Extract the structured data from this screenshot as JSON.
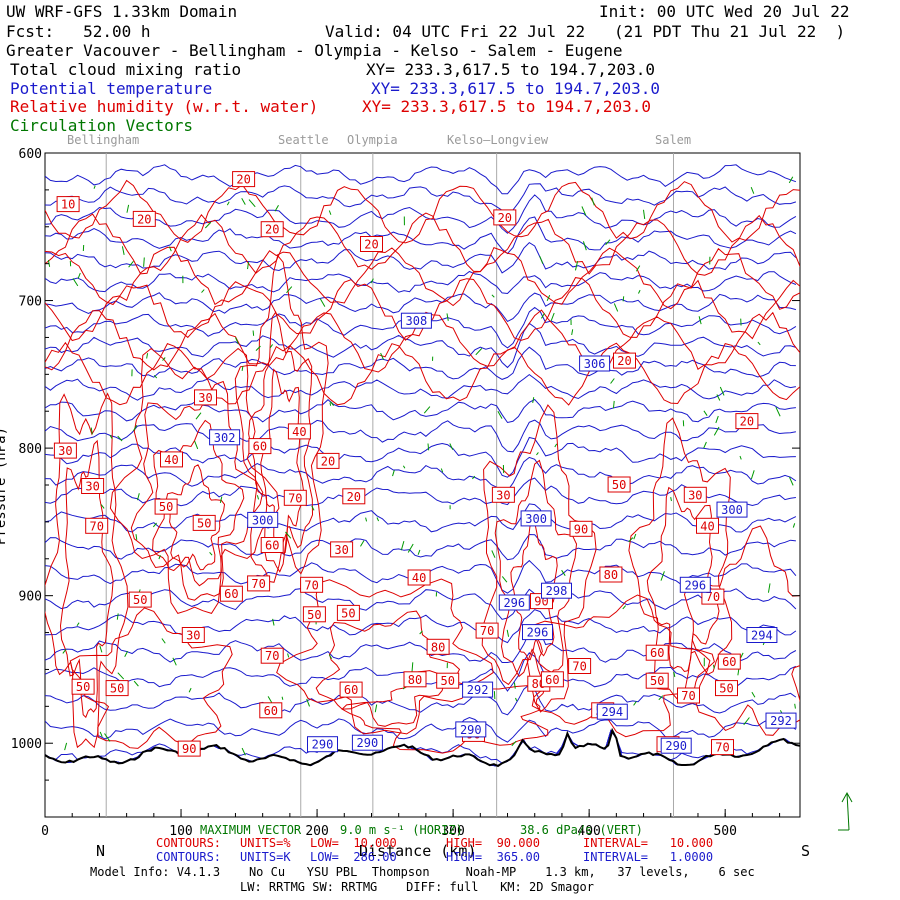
{
  "header": {
    "title": "UW WRF-GFS 1.33km Domain",
    "init": "Init: 00 UTC Wed 20 Jul 22",
    "fcst": "Fcst:   52.00 h",
    "valid": "Valid: 04 UTC Fri 22 Jul 22   (21 PDT Thu 21 Jul 22  )",
    "region": "Greater Vacouver - Bellingham - Olympia - Kelso - Salem - Eugene",
    "fields": [
      {
        "name": "Total cloud mixing ratio",
        "xy": "XY= 233.3,617.5 to 194.7,203.0",
        "color": "#000000"
      },
      {
        "name": "Potential temperature",
        "xy": "XY= 233.3,617.5 to 194.7,203.0",
        "color": "#1a1acc"
      },
      {
        "name": "Relative humidity (w.r.t. water)",
        "xy": "XY= 233.3,617.5 to 194.7,203.0",
        "color": "#dd0000"
      },
      {
        "name": "Circulation Vectors",
        "xy": "",
        "color": "#007700"
      }
    ]
  },
  "cities": [
    {
      "name": "Bellingham",
      "km": 45
    },
    {
      "name": "Seattle",
      "km": 188
    },
    {
      "name": "Olympia",
      "km": 241
    },
    {
      "name": "Kelso—Longview",
      "km": 332
    },
    {
      "name": "Salem",
      "km": 462
    }
  ],
  "chart_data": {
    "type": "cross-section",
    "xlabel": "Distance (km)",
    "ylabel": "Pressure (hPa)",
    "xlim": [
      0,
      555
    ],
    "ylim": [
      1050,
      600
    ],
    "xticks": [
      0,
      100,
      200,
      300,
      400,
      500
    ],
    "yticks": [
      600,
      700,
      800,
      900,
      1000
    ],
    "x_end_labels": {
      "left": "N",
      "right": "S"
    },
    "potential_temperature_labels": [
      {
        "value": "308",
        "km": 273,
        "p": 714
      },
      {
        "value": "306",
        "km": 404,
        "p": 743
      },
      {
        "value": "302",
        "km": 132,
        "p": 793
      },
      {
        "value": "300",
        "km": 160,
        "p": 849
      },
      {
        "value": "300",
        "km": 361,
        "p": 848
      },
      {
        "value": "300",
        "km": 505,
        "p": 842
      },
      {
        "value": "298",
        "km": 376,
        "p": 897
      },
      {
        "value": "296",
        "km": 345,
        "p": 905
      },
      {
        "value": "296",
        "km": 478,
        "p": 893
      },
      {
        "value": "296",
        "km": 362,
        "p": 925
      },
      {
        "value": "294",
        "km": 527,
        "p": 927
      },
      {
        "value": "292",
        "km": 318,
        "p": 964
      },
      {
        "value": "292",
        "km": 541,
        "p": 985
      },
      {
        "value": "290",
        "km": 204,
        "p": 1001
      },
      {
        "value": "290",
        "km": 237,
        "p": 1000
      },
      {
        "value": "290",
        "km": 313,
        "p": 991
      },
      {
        "value": "290",
        "km": 464,
        "p": 1002
      },
      {
        "value": "294",
        "km": 417,
        "p": 979
      }
    ],
    "relative_humidity_labels": [
      {
        "value": "10",
        "km": 17,
        "p": 635
      },
      {
        "value": "20",
        "km": 146,
        "p": 618
      },
      {
        "value": "20",
        "km": 73,
        "p": 645
      },
      {
        "value": "20",
        "km": 167,
        "p": 652
      },
      {
        "value": "20",
        "km": 240,
        "p": 662
      },
      {
        "value": "20",
        "km": 338,
        "p": 644
      },
      {
        "value": "20",
        "km": 426,
        "p": 741
      },
      {
        "value": "20",
        "km": 516,
        "p": 782
      },
      {
        "value": "30",
        "km": 118,
        "p": 766
      },
      {
        "value": "30",
        "km": 15,
        "p": 802
      },
      {
        "value": "40",
        "km": 93,
        "p": 808
      },
      {
        "value": "40",
        "km": 187,
        "p": 789
      },
      {
        "value": "60",
        "km": 158,
        "p": 799
      },
      {
        "value": "20",
        "km": 208,
        "p": 809
      },
      {
        "value": "30",
        "km": 35,
        "p": 826
      },
      {
        "value": "50",
        "km": 89,
        "p": 840
      },
      {
        "value": "70",
        "km": 38,
        "p": 853
      },
      {
        "value": "50",
        "km": 117,
        "p": 851
      },
      {
        "value": "70",
        "km": 184,
        "p": 834
      },
      {
        "value": "20",
        "km": 227,
        "p": 833
      },
      {
        "value": "30",
        "km": 337,
        "p": 832
      },
      {
        "value": "50",
        "km": 422,
        "p": 825
      },
      {
        "value": "30",
        "km": 478,
        "p": 832
      },
      {
        "value": "60",
        "km": 167,
        "p": 866
      },
      {
        "value": "30",
        "km": 218,
        "p": 869
      },
      {
        "value": "90",
        "km": 394,
        "p": 855
      },
      {
        "value": "40",
        "km": 487,
        "p": 853
      },
      {
        "value": "70",
        "km": 157,
        "p": 892
      },
      {
        "value": "40",
        "km": 275,
        "p": 888
      },
      {
        "value": "80",
        "km": 416,
        "p": 886
      },
      {
        "value": "50",
        "km": 70,
        "p": 903
      },
      {
        "value": "60",
        "km": 137,
        "p": 899
      },
      {
        "value": "70",
        "km": 196,
        "p": 893
      },
      {
        "value": "50",
        "km": 198,
        "p": 913
      },
      {
        "value": "50",
        "km": 223,
        "p": 912
      },
      {
        "value": "90",
        "km": 365,
        "p": 904
      },
      {
        "value": "30",
        "km": 109,
        "p": 927
      },
      {
        "value": "70",
        "km": 325,
        "p": 924
      },
      {
        "value": "80",
        "km": 289,
        "p": 935
      },
      {
        "value": "70",
        "km": 167,
        "p": 941
      },
      {
        "value": "80",
        "km": 363,
        "p": 960
      },
      {
        "value": "70",
        "km": 393,
        "p": 948
      },
      {
        "value": "60",
        "km": 450,
        "p": 939
      },
      {
        "value": "60",
        "km": 503,
        "p": 945
      },
      {
        "value": "70",
        "km": 491,
        "p": 901
      },
      {
        "value": "50",
        "km": 28,
        "p": 962
      },
      {
        "value": "50",
        "km": 53,
        "p": 963
      },
      {
        "value": "60",
        "km": 225,
        "p": 964
      },
      {
        "value": "80",
        "km": 272,
        "p": 957
      },
      {
        "value": "50",
        "km": 296,
        "p": 958
      },
      {
        "value": "60",
        "km": 373,
        "p": 957
      },
      {
        "value": "50",
        "km": 450,
        "p": 958
      },
      {
        "value": "70",
        "km": 473,
        "p": 968
      },
      {
        "value": "50",
        "km": 501,
        "p": 963
      },
      {
        "value": "60",
        "km": 166,
        "p": 978
      },
      {
        "value": "90",
        "km": 106,
        "p": 1004
      },
      {
        "value": "90",
        "km": 315,
        "p": 994
      },
      {
        "value": "70",
        "km": 458,
        "p": 1001
      },
      {
        "value": "70",
        "km": 498,
        "p": 1003
      },
      {
        "value": "50",
        "km": 410,
        "p": 978
      }
    ],
    "vector_reference": {
      "text": "MAXIMUM VECTOR",
      "horiz": "9.0 m s⁻¹ (HORIZ)",
      "vert": "38.6 dPa/s (VERT)"
    }
  },
  "footer": {
    "rh_contours": {
      "label": "CONTOURS:",
      "units": "UNITS=%",
      "low": "LOW=  10.000",
      "high": "HIGH=  90.000",
      "interval": "INTERVAL=   10.000"
    },
    "theta_contours": {
      "label": "CONTOURS:",
      "units": "UNITS=K",
      "low": "LOW=  286.00",
      "high": "HIGH=  365.00",
      "interval": "INTERVAL=   1.0000"
    },
    "model_info": "Model Info: V4.1.3    No Cu   YSU PBL  Thompson     Noah-MP    1.3 km,   37 levels,    6 sec",
    "model_info2": "LW: RRTMG SW: RRTMG    DIFF: full   KM: 2D Smagor"
  }
}
